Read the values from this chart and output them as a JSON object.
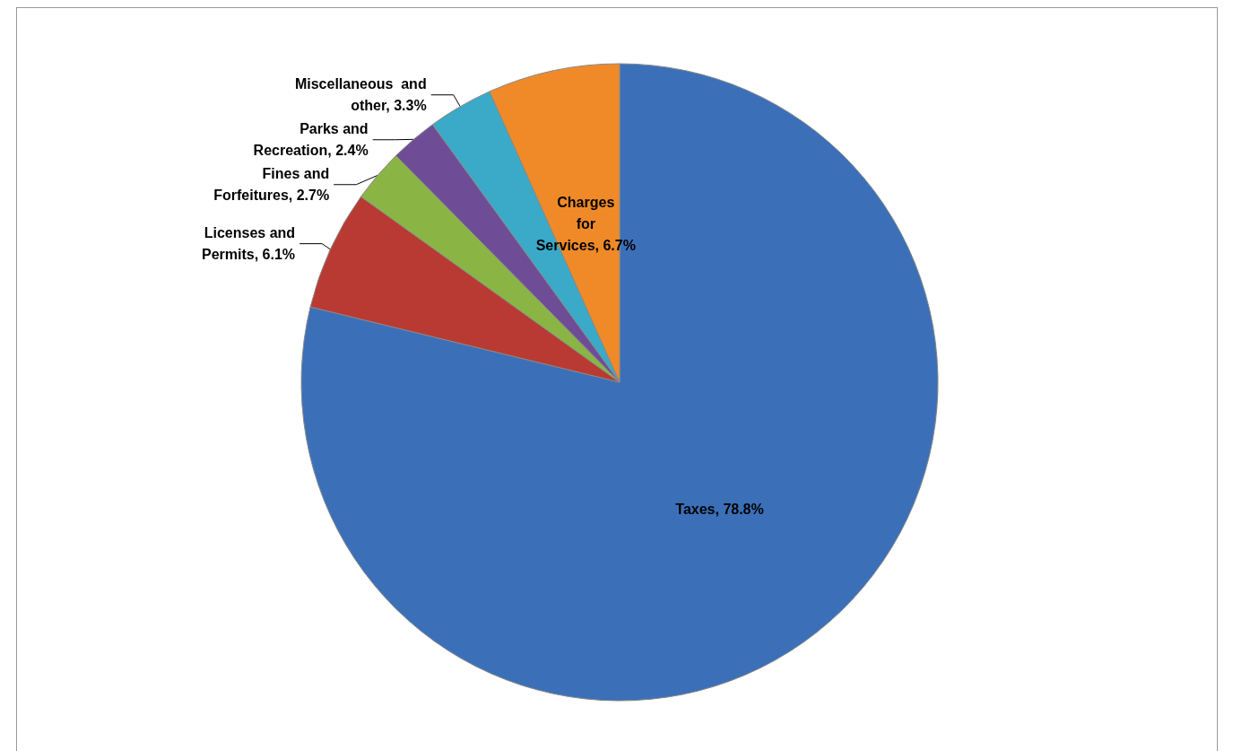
{
  "chart_data": {
    "type": "pie",
    "categories": [
      "Taxes",
      "Licenses and Permits",
      "Fines and Forfeitures",
      "Parks and Recreation",
      "Miscellaneous  and other",
      "Charges for Services"
    ],
    "values": [
      78.8,
      6.1,
      2.7,
      2.4,
      3.3,
      6.7
    ],
    "value_labels": [
      "78.8%",
      "6.1%",
      "2.7%",
      "2.4%",
      "3.3%",
      "6.7%"
    ],
    "colors": [
      "#3b70b9",
      "#b93a32",
      "#8ab545",
      "#6e4d96",
      "#3aaac8",
      "#f08a28"
    ],
    "legend": false
  }
}
